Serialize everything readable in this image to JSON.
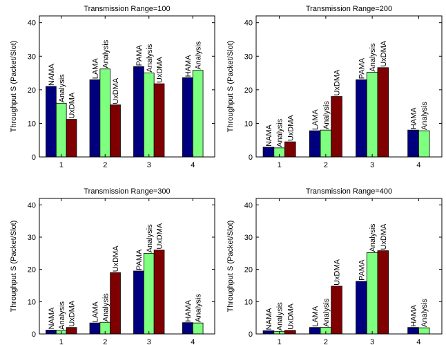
{
  "chart_data": [
    {
      "type": "bar",
      "title": "Transmission Range=100",
      "ylabel": "Throughput S (Packet/Slot)",
      "xlabel": "",
      "ylim": [
        0,
        42
      ],
      "yticks": [
        0,
        10,
        20,
        30,
        40
      ],
      "categories": [
        "1",
        "2",
        "3",
        "4"
      ],
      "grid": false,
      "groups": [
        {
          "bars": [
            {
              "value": 21,
              "label": "NAMA",
              "kind": "blue"
            },
            {
              "value": 16,
              "label": "Analysis",
              "kind": "green"
            },
            {
              "value": 11.2,
              "label": "UxDMA",
              "kind": "red"
            }
          ]
        },
        {
          "bars": [
            {
              "value": 23,
              "label": "LAMA",
              "kind": "blue"
            },
            {
              "value": 26.2,
              "label": "Analysis",
              "kind": "green"
            },
            {
              "value": 15.5,
              "label": "UxDMA",
              "kind": "red"
            }
          ]
        },
        {
          "bars": [
            {
              "value": 26.9,
              "label": "PAMA",
              "kind": "blue"
            },
            {
              "value": 25,
              "label": "Analysis",
              "kind": "green"
            },
            {
              "value": 21.8,
              "label": "UxDMA",
              "kind": "red"
            }
          ]
        },
        {
          "bars": [
            {
              "value": 23.6,
              "label": "HAMA",
              "kind": "blue"
            },
            {
              "value": 25.8,
              "label": "Analysis",
              "kind": "green"
            }
          ]
        }
      ]
    },
    {
      "type": "bar",
      "title": "Transmission Range=200",
      "ylabel": "Throughput S (Packet/Slot)",
      "xlabel": "",
      "ylim": [
        0,
        42
      ],
      "yticks": [
        0,
        10,
        20,
        30,
        40
      ],
      "categories": [
        "1",
        "2",
        "3",
        "4"
      ],
      "grid": false,
      "groups": [
        {
          "bars": [
            {
              "value": 2.9,
              "label": "NAMA",
              "kind": "blue"
            },
            {
              "value": 2.7,
              "label": "Analysis",
              "kind": "green"
            },
            {
              "value": 4.5,
              "label": "UxDMA",
              "kind": "red"
            }
          ]
        },
        {
          "bars": [
            {
              "value": 7.8,
              "label": "LAMA",
              "kind": "blue"
            },
            {
              "value": 8,
              "label": "Analysis",
              "kind": "green"
            },
            {
              "value": 18,
              "label": "UxDMA",
              "kind": "red"
            }
          ]
        },
        {
          "bars": [
            {
              "value": 23,
              "label": "PAMA",
              "kind": "blue"
            },
            {
              "value": 25.2,
              "label": "Analysis",
              "kind": "green"
            },
            {
              "value": 26.6,
              "label": "UxDMA",
              "kind": "red"
            }
          ]
        },
        {
          "bars": [
            {
              "value": 8,
              "label": "HAMA",
              "kind": "blue"
            },
            {
              "value": 7.8,
              "label": "Analysis",
              "kind": "green"
            }
          ]
        }
      ]
    },
    {
      "type": "bar",
      "title": "Transmission Range=300",
      "ylabel": "Throughput S (Packet/Slot)",
      "xlabel": "",
      "ylim": [
        0,
        42
      ],
      "yticks": [
        0,
        10,
        20,
        30,
        40
      ],
      "categories": [
        "1",
        "2",
        "3",
        "4"
      ],
      "grid": false,
      "groups": [
        {
          "bars": [
            {
              "value": 1.2,
              "label": "NAMA",
              "kind": "blue"
            },
            {
              "value": 1.1,
              "label": "Analysis",
              "kind": "green"
            },
            {
              "value": 2,
              "label": "UxDMA",
              "kind": "red"
            }
          ]
        },
        {
          "bars": [
            {
              "value": 3.4,
              "label": "LAMA",
              "kind": "blue"
            },
            {
              "value": 3.6,
              "label": "Analysis",
              "kind": "green"
            },
            {
              "value": 19,
              "label": "UxDMA",
              "kind": "red"
            }
          ]
        },
        {
          "bars": [
            {
              "value": 19.5,
              "label": "PAMA",
              "kind": "blue"
            },
            {
              "value": 25,
              "label": "Analysis",
              "kind": "green"
            },
            {
              "value": 26,
              "label": "UxDMA",
              "kind": "red"
            }
          ]
        },
        {
          "bars": [
            {
              "value": 3.5,
              "label": "HAMA",
              "kind": "blue"
            },
            {
              "value": 3.4,
              "label": "Analysis",
              "kind": "green"
            }
          ]
        }
      ]
    },
    {
      "type": "bar",
      "title": "Transmission Range=400",
      "ylabel": "Throughput S (Packet/Slot)",
      "xlabel": "",
      "ylim": [
        0,
        42
      ],
      "yticks": [
        0,
        10,
        20,
        30,
        40
      ],
      "categories": [
        "1",
        "2",
        "3",
        "4"
      ],
      "grid": false,
      "groups": [
        {
          "bars": [
            {
              "value": 1,
              "label": "NAMA",
              "kind": "blue"
            },
            {
              "value": 0.8,
              "label": "Analysis",
              "kind": "green"
            },
            {
              "value": 1.1,
              "label": "UxDMA",
              "kind": "red"
            }
          ]
        },
        {
          "bars": [
            {
              "value": 2,
              "label": "LAMA",
              "kind": "blue"
            },
            {
              "value": 2,
              "label": "Analysis",
              "kind": "green"
            },
            {
              "value": 14.8,
              "label": "UxDMA",
              "kind": "red"
            }
          ]
        },
        {
          "bars": [
            {
              "value": 16.3,
              "label": "PAMA",
              "kind": "blue"
            },
            {
              "value": 25.2,
              "label": "Analysis",
              "kind": "green"
            },
            {
              "value": 25.8,
              "label": "UxDMA",
              "kind": "red"
            }
          ]
        },
        {
          "bars": [
            {
              "value": 2,
              "label": "HAMA",
              "kind": "blue"
            },
            {
              "value": 1.9,
              "label": "Analysis",
              "kind": "green"
            }
          ]
        }
      ]
    }
  ],
  "colors": {
    "blue": "#00007f",
    "green": "#7fff7f",
    "red": "#7f0000",
    "axis": "#000000"
  }
}
